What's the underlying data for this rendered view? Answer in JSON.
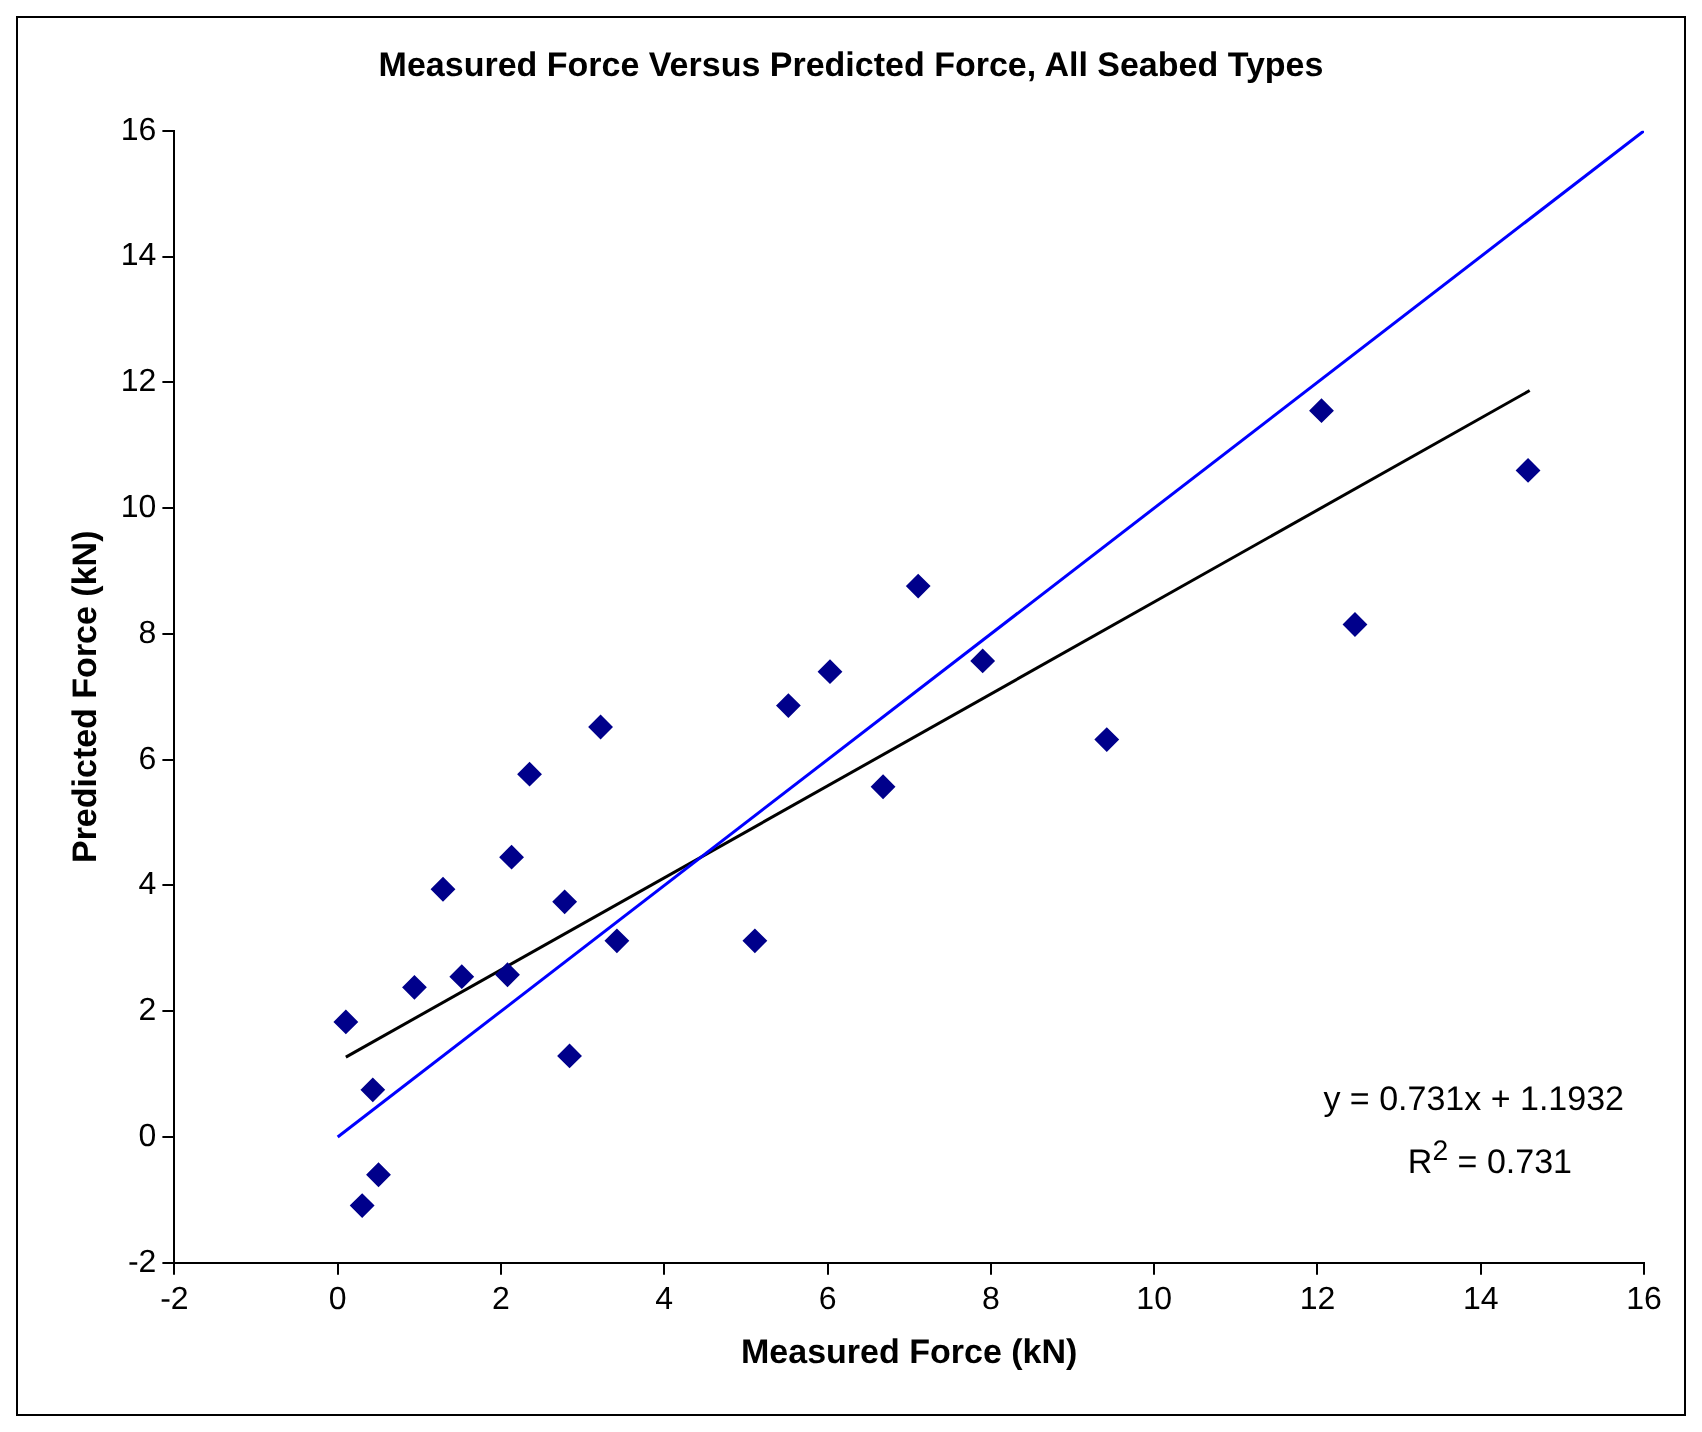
{
  "chart_data": {
    "type": "scatter",
    "title": "Measured Force Versus Predicted Force, All Seabed Types",
    "xlabel": "Measured Force (kN)",
    "ylabel": "Predicted Force (kN)",
    "xlim": [
      -2,
      16
    ],
    "xticks": [
      -2,
      0,
      2,
      4,
      6,
      8,
      10,
      12,
      14,
      16
    ],
    "ylim": [
      -2,
      16
    ],
    "yticks": [
      -2,
      0,
      2,
      4,
      6,
      8,
      10,
      12,
      14,
      16
    ],
    "grid": false,
    "legend": false,
    "annotations": [
      "y = 0.731x + 1.1932",
      "R$^{2}$ = 0.731"
    ],
    "series": [
      {
        "marker": "diamond",
        "color": "#00008b",
        "x": [
          0.1,
          0.3,
          0.43,
          0.5,
          0.94,
          1.29,
          1.52,
          2.13,
          2.08,
          2.35,
          2.78,
          2.84,
          3.22,
          3.42,
          5.11,
          5.52,
          6.03,
          6.68,
          7.11,
          7.9,
          9.42,
          12.05,
          12.46,
          14.58
        ],
        "values": [
          1.83,
          -1.09,
          0.75,
          -0.6,
          2.38,
          3.94,
          2.55,
          4.45,
          2.58,
          5.77,
          3.74,
          1.29,
          6.52,
          3.12,
          3.12,
          6.86,
          7.4,
          5.57,
          8.76,
          7.57,
          6.32,
          11.55,
          8.15,
          10.6
        ]
      },
      {
        "type": "line",
        "marker": "none",
        "color": "#0000ff",
        "x": [
          0,
          16
        ],
        "values": [
          0,
          16
        ]
      },
      {
        "type": "line",
        "marker": "none",
        "color": "#000000",
        "x": [
          0.1,
          14.6
        ],
        "values": [
          1.27,
          11.87
        ]
      }
    ]
  }
}
